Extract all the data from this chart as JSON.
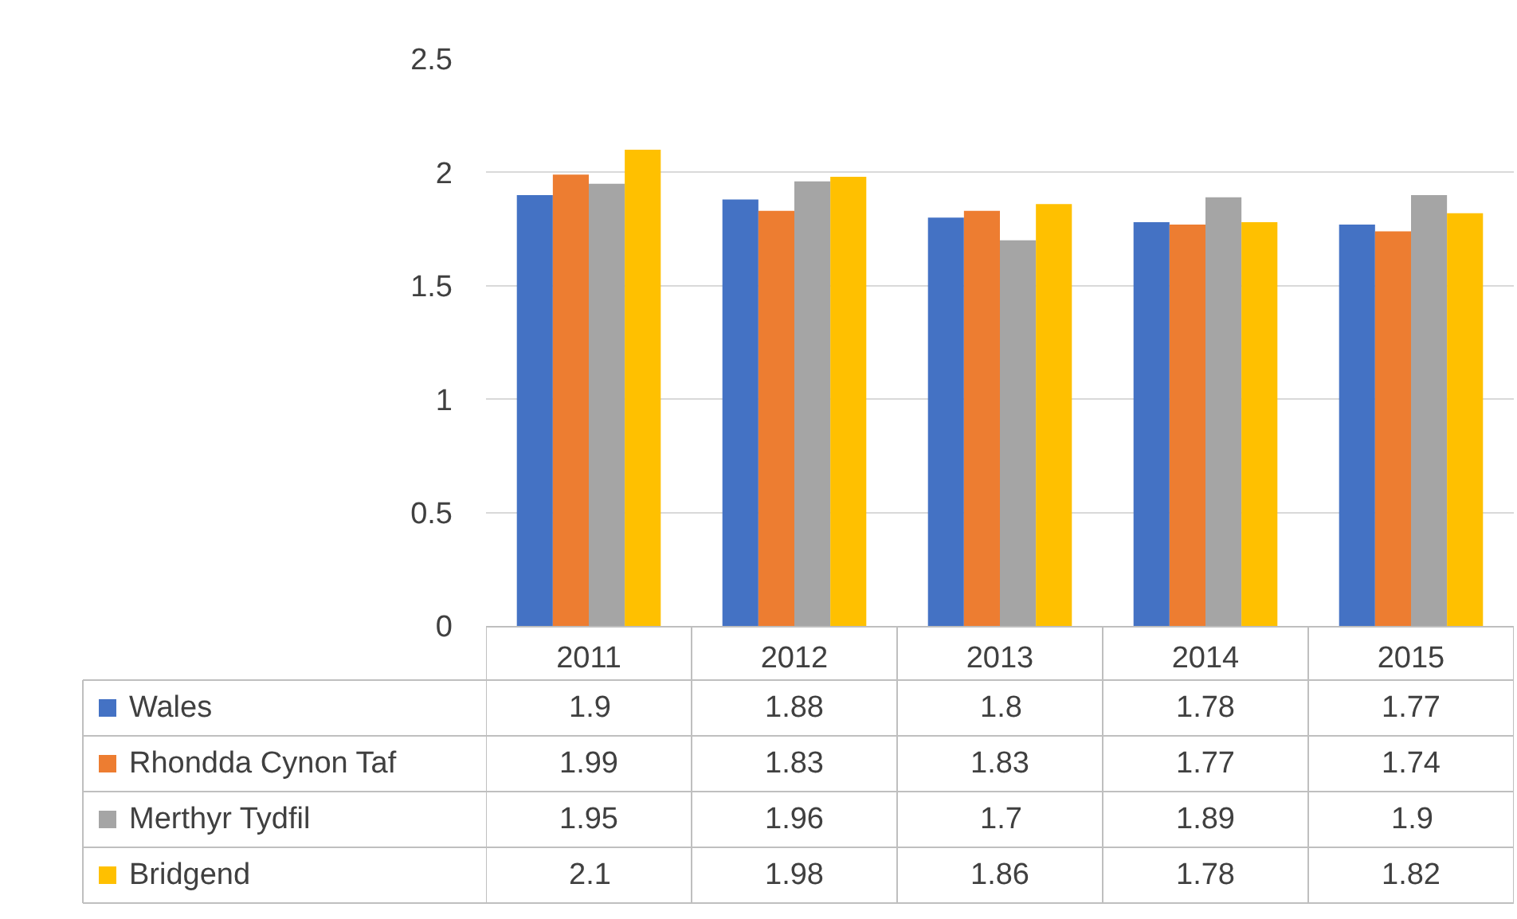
{
  "chart_data": {
    "type": "bar",
    "categories": [
      "2011",
      "2012",
      "2013",
      "2014",
      "2015"
    ],
    "series": [
      {
        "name": "Wales",
        "color": "#4472c4",
        "values": [
          1.9,
          1.88,
          1.8,
          1.78,
          1.77
        ]
      },
      {
        "name": "Rhondda Cynon Taf",
        "color": "#ed7d31",
        "values": [
          1.99,
          1.83,
          1.83,
          1.77,
          1.74
        ]
      },
      {
        "name": "Merthyr Tydfil",
        "color": "#a5a5a5",
        "values": [
          1.95,
          1.96,
          1.7,
          1.89,
          1.9
        ]
      },
      {
        "name": "Bridgend",
        "color": "#ffc000",
        "values": [
          2.1,
          1.98,
          1.86,
          1.78,
          1.82
        ]
      }
    ],
    "ylim": [
      0,
      2.5
    ],
    "yticks": [
      0,
      0.5,
      1,
      1.5,
      2,
      2.5
    ],
    "grid": "y",
    "data_labels": true,
    "legend": "bottom left"
  }
}
